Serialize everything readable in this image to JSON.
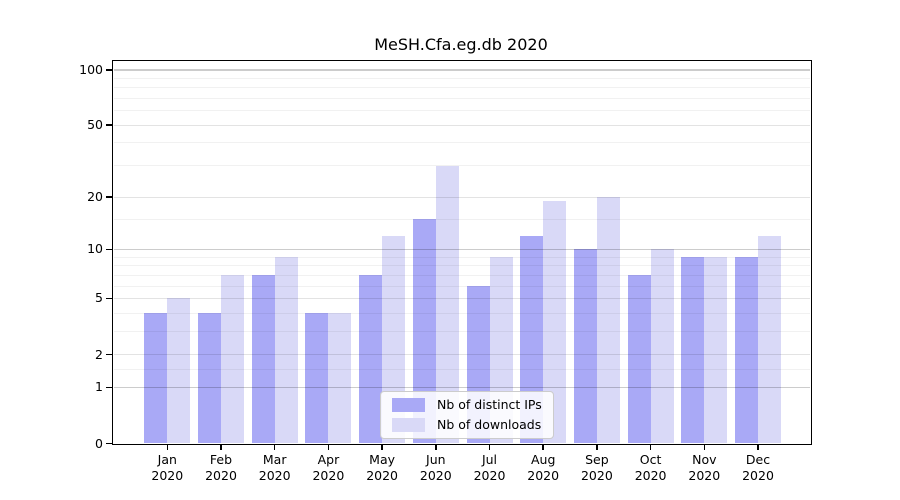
{
  "chart_data": {
    "type": "bar",
    "title": "MeSH.Cfa.eg.db 2020",
    "categories": [
      "Jan 2020",
      "Feb 2020",
      "Mar 2020",
      "Apr 2020",
      "May 2020",
      "Jun 2020",
      "Jul 2020",
      "Aug 2020",
      "Sep 2020",
      "Oct 2020",
      "Nov 2020",
      "Dec 2020"
    ],
    "series": [
      {
        "name": "Nb of distinct IPs",
        "color": "#a9a9f6",
        "values": [
          4,
          4,
          7,
          4,
          7,
          15,
          6,
          12,
          10,
          7,
          9,
          9
        ]
      },
      {
        "name": "Nb of downloads",
        "color": "#d9d9f7",
        "values": [
          5,
          7,
          9,
          4,
          12,
          30,
          9,
          19,
          20,
          10,
          9,
          12
        ]
      }
    ],
    "xlabel": "",
    "ylabel": "",
    "yscale": "log1p",
    "ylim": [
      0,
      110
    ],
    "yticks": [
      0,
      1,
      2,
      5,
      10,
      20,
      50,
      100
    ],
    "minor_gridlines": [
      1.5,
      3,
      4,
      6,
      7,
      8,
      9,
      15,
      30,
      40,
      60,
      70,
      80,
      90
    ],
    "grid": "on",
    "legend_position": "lower center"
  },
  "colors": {
    "bar_distinct_ips": "#a9a9f6",
    "bar_downloads": "#d9d9f7",
    "grid_strong": "rgba(0,0,0,0.20)",
    "grid_major": "rgba(0,0,0,0.11)",
    "grid_minor": "rgba(0,0,0,0.055)",
    "axis": "#000000",
    "text": "#000000",
    "legend_border": "#cccccc",
    "legend_background": "rgba(255,255,255,0.85)"
  }
}
